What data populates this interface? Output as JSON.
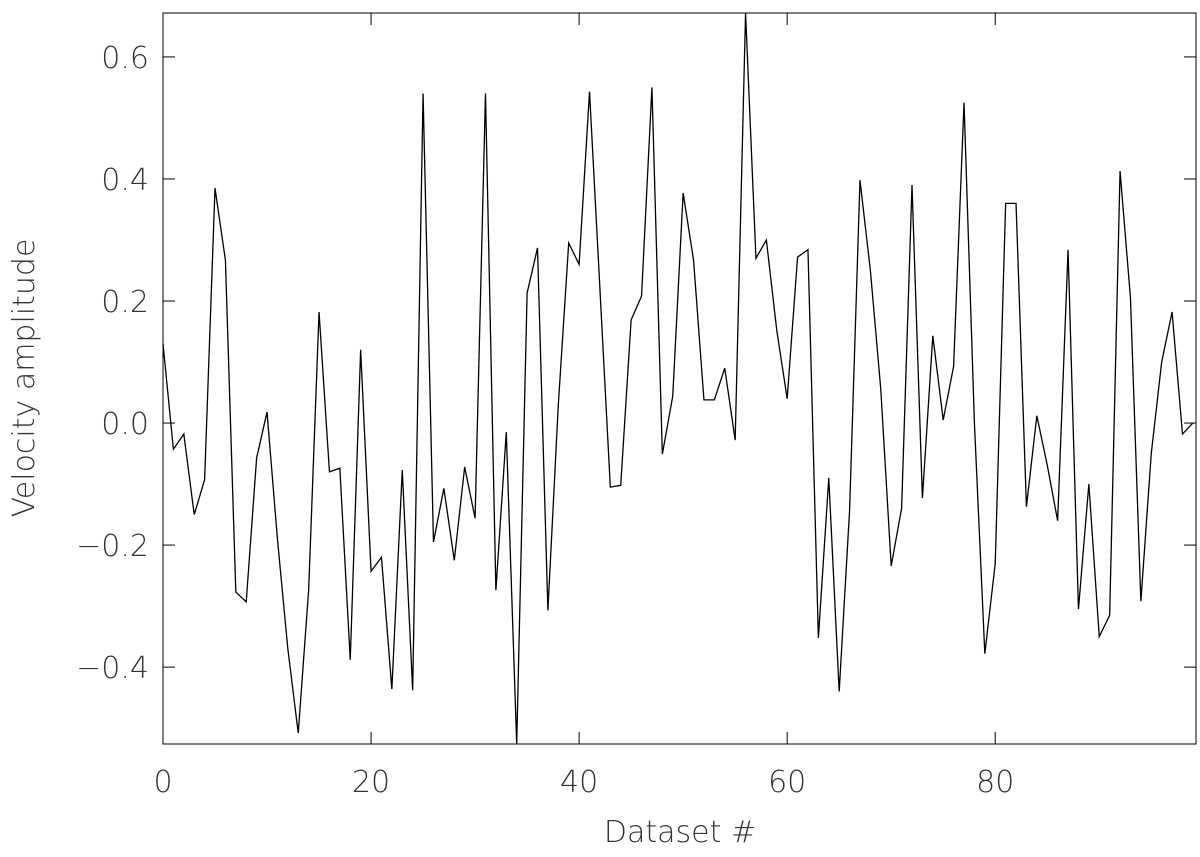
{
  "chart_data": {
    "type": "line",
    "x_label": "Dataset #",
    "y_label": "Velocity amplitude",
    "color": "#000000",
    "xlim": [
      0,
      99.3
    ],
    "ylim": [
      -0.526,
      0.672
    ],
    "xticks": [
      0,
      20,
      40,
      60,
      80
    ],
    "yticks": [
      {
        "value": -0.4,
        "label": "−0.4"
      },
      {
        "value": -0.2,
        "label": "−0.2"
      },
      {
        "value": 0,
        "label": "0.0"
      },
      0.2,
      0.4,
      0.6
    ],
    "x": [
      0,
      1,
      2,
      3,
      4,
      5,
      6,
      7,
      8,
      9,
      10,
      11,
      12,
      13,
      14,
      15,
      16,
      17,
      18,
      19,
      20,
      21,
      22,
      23,
      24,
      25,
      26,
      27,
      28,
      29,
      30,
      31,
      32,
      33,
      34,
      35,
      36,
      37,
      38,
      39,
      40,
      41,
      42,
      43,
      44,
      45,
      46,
      47,
      48,
      49,
      50,
      51,
      52,
      53,
      54,
      55,
      56,
      57,
      58,
      59,
      60,
      61,
      62,
      63,
      64,
      65,
      66,
      67,
      68,
      69,
      70,
      71,
      72,
      73,
      74,
      75,
      76,
      77,
      78,
      79,
      80,
      81,
      82,
      83,
      84,
      85,
      86,
      87,
      88,
      89,
      90,
      91,
      92,
      93,
      94,
      95,
      96,
      97,
      98,
      99
    ],
    "values": [
      0.13,
      -0.043,
      -0.018,
      -0.15,
      -0.093,
      0.385,
      0.267,
      -0.277,
      -0.293,
      -0.057,
      0.018,
      -0.19,
      -0.37,
      -0.508,
      -0.274,
      0.182,
      -0.08,
      -0.074,
      -0.388,
      0.12,
      -0.243,
      -0.22,
      -0.436,
      -0.077,
      -0.438,
      0.54,
      -0.195,
      -0.107,
      -0.225,
      -0.072,
      -0.156,
      0.54,
      -0.274,
      -0.015,
      -0.526,
      0.213,
      0.287,
      -0.307,
      0.03,
      0.295,
      0.26,
      0.543,
      0.22,
      -0.105,
      -0.102,
      0.169,
      0.208,
      0.55,
      -0.051,
      0.044,
      0.377,
      0.267,
      0.038,
      0.038,
      0.09,
      -0.028,
      0.672,
      0.27,
      0.3,
      0.152,
      0.04,
      0.272,
      0.284,
      -0.352,
      -0.09,
      -0.44,
      -0.143,
      0.398,
      0.25,
      0.055,
      -0.234,
      -0.14,
      0.39,
      -0.123,
      0.143,
      0.005,
      0.093,
      0.525,
      0.0,
      -0.378,
      -0.23,
      0.36,
      0.36,
      -0.137,
      0.012,
      -0.069,
      -0.16,
      0.284,
      -0.305,
      -0.1,
      -0.35,
      -0.315,
      0.413,
      0.205,
      -0.292,
      -0.05,
      0.1,
      0.182,
      -0.018,
      0.0
    ]
  }
}
